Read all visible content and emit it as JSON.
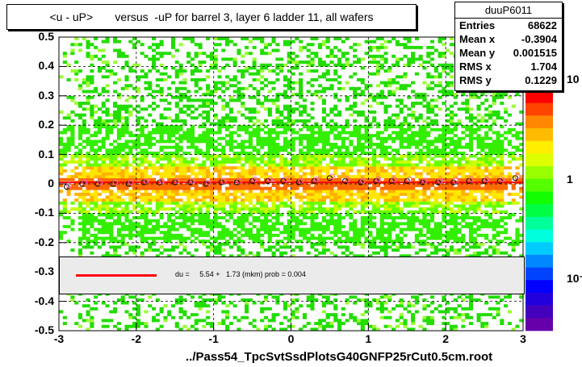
{
  "title": "<u - uP>       versus  -uP for barrel 3, layer 6 ladder 11, all wafers",
  "stats": {
    "name": "duuP6011",
    "rows": [
      {
        "label": "Entries",
        "value": "68622"
      },
      {
        "label": "Mean x",
        "value": "-0.3904"
      },
      {
        "label": "Mean y",
        "value": "0.001515"
      },
      {
        "label": "RMS x",
        "value": "1.704"
      },
      {
        "label": "RMS y",
        "value": "0.1229"
      }
    ]
  },
  "fit_legend": "du =     5.54 +   1.73 (mkm) prob = 0.004",
  "file_label": "../Pass54_TpcSvtSsdPlotsG40GNFP25rCut0.5cm.root",
  "colors": {
    "fit": "#ff0000",
    "profile_black": "#000000",
    "profile_pink": "#ff66cc",
    "band_core": "#ff6600",
    "band_mid": "#ffdd00",
    "band_outer": "#00ee00"
  },
  "chart_data": {
    "type": "heatmap",
    "title": "<u - uP>       versus  -uP for barrel 3, layer 6 ladder 11, all wafers",
    "xlim": [
      -3,
      3
    ],
    "ylim": [
      -0.5,
      0.5
    ],
    "x_ticks": [
      "-3",
      "-2",
      "-1",
      "0",
      "1",
      "2",
      "3"
    ],
    "y_ticks": [
      "-0.5",
      "-0.4",
      "-0.3",
      "-0.2",
      "-0.1",
      "0",
      "0.1",
      "0.2",
      "0.3",
      "0.4",
      "0.5"
    ],
    "z_scale": "log",
    "z_ticks": [
      "10⁻¹",
      "1",
      "10"
    ],
    "grid": true,
    "profile": {
      "x": [
        -2.9,
        -2.7,
        -2.5,
        -2.3,
        -2.1,
        -1.9,
        -1.7,
        -1.5,
        -1.3,
        -1.1,
        -0.9,
        -0.7,
        -0.5,
        -0.3,
        -0.1,
        0.1,
        0.3,
        0.5,
        0.7,
        0.9,
        1.1,
        1.3,
        1.5,
        1.7,
        1.9,
        2.1,
        2.3,
        2.5,
        2.7,
        2.9
      ],
      "y": [
        -0.01,
        0.0,
        0.0,
        0.0,
        0.0,
        0.005,
        0.005,
        0.005,
        0.005,
        0.0,
        0.005,
        0.005,
        0.01,
        0.01,
        0.01,
        0.005,
        0.01,
        0.02,
        0.01,
        0.005,
        0.01,
        0.01,
        0.01,
        0.005,
        0.005,
        0.005,
        0.01,
        0.01,
        0.01,
        0.02
      ]
    },
    "fit": {
      "label": "du =     5.54 +   1.73 (mkm) prob = 0.004",
      "y": 0.005
    }
  }
}
